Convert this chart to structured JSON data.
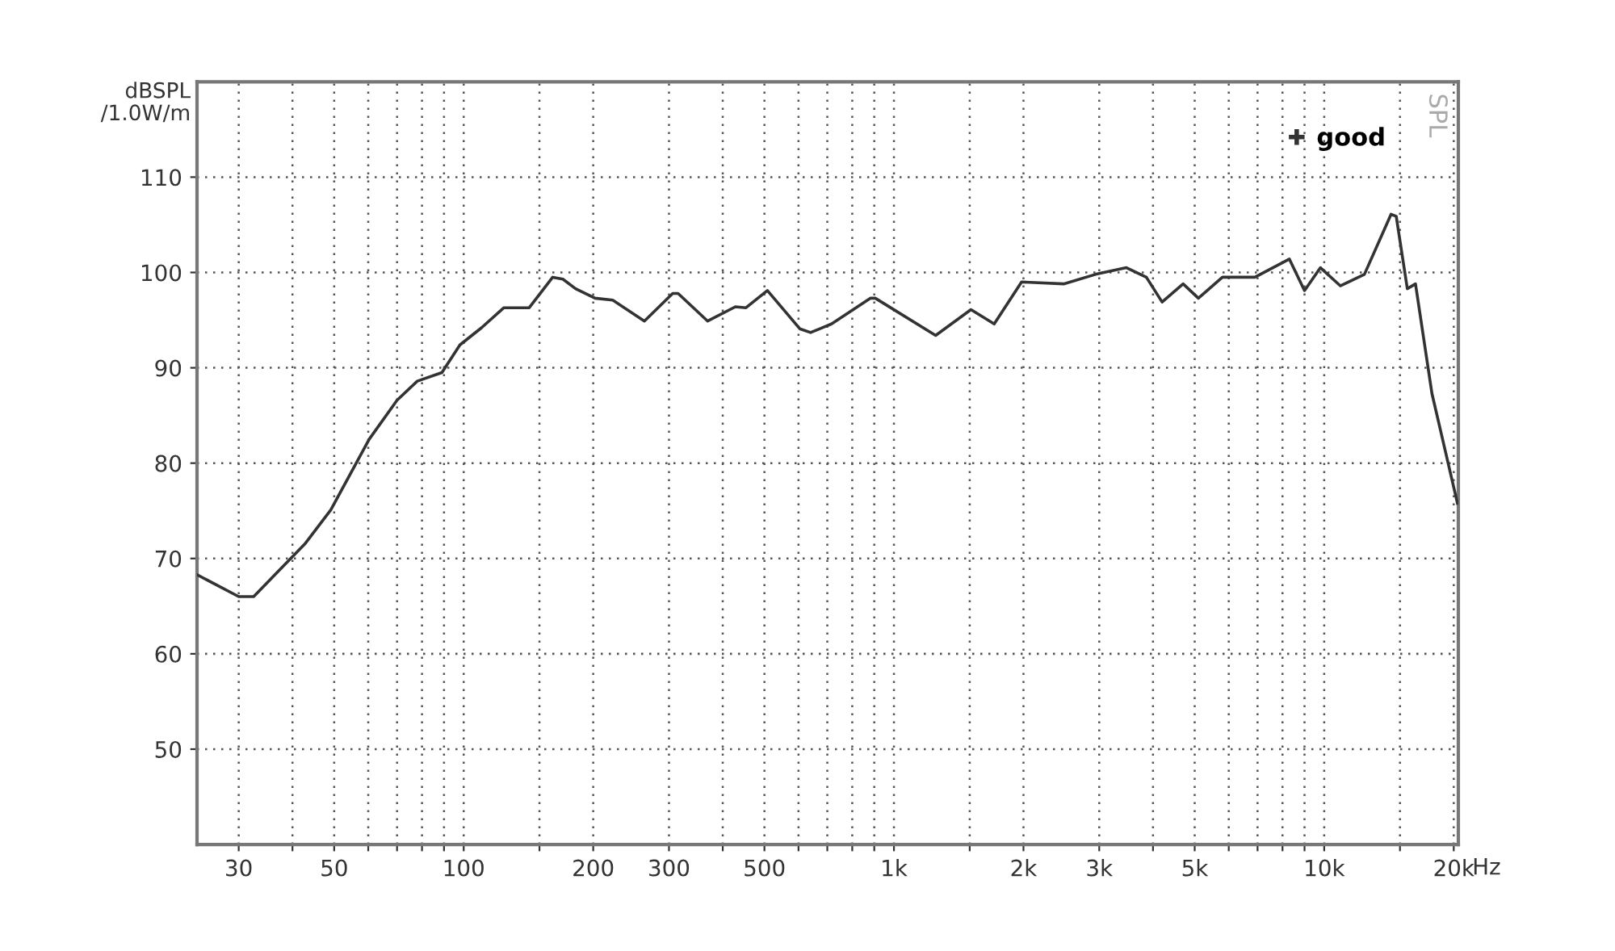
{
  "chart_data": {
    "type": "line",
    "ylabel": "dBSPL\n/1.0W/m",
    "x": [
      24,
      30,
      32.5,
      40,
      42.7,
      49.1,
      60.3,
      70,
      78,
      89,
      98,
      110,
      124,
      142,
      161,
      170,
      182,
      202,
      222,
      263,
      306,
      315,
      369,
      428,
      453,
      508,
      604,
      640,
      716,
      881,
      905,
      1250,
      1510,
      1710,
      1980,
      2480,
      2940,
      3470,
      3860,
      4200,
      4700,
      5100,
      5800,
      6900,
      8300,
      9000,
      9800,
      10900,
      12400,
      14300,
      14700,
      15600,
      16300,
      17800,
      20400
    ],
    "series": [
      {
        "name": "good",
        "color": "#333333",
        "values": [
          68.3,
          66.0,
          66.0,
          70.2,
          71.5,
          75.1,
          82.5,
          86.6,
          88.6,
          89.5,
          92.4,
          94.2,
          96.3,
          96.3,
          99.5,
          99.3,
          98.3,
          97.3,
          97.1,
          94.9,
          97.8,
          97.8,
          94.9,
          96.4,
          96.3,
          98.1,
          94.1,
          93.7,
          94.6,
          97.3,
          97.3,
          93.4,
          96.1,
          94.6,
          99.0,
          98.8,
          99.8,
          100.5,
          99.5,
          96.9,
          98.8,
          97.3,
          99.5,
          99.5,
          101.4,
          98.1,
          100.5,
          98.6,
          99.8,
          106.1,
          105.9,
          98.3,
          98.8,
          87.3,
          75.8
        ]
      }
    ],
    "log": "x",
    "xlim": [
      24,
      20500
    ],
    "xticks": [
      30,
      {
        "value": 40,
        "label": null
      },
      50,
      {
        "value": 60,
        "label": null
      },
      {
        "value": 70,
        "label": null
      },
      {
        "value": 80,
        "label": null
      },
      {
        "value": 90,
        "label": null
      },
      100,
      {
        "value": 150,
        "label": null
      },
      200,
      300,
      {
        "value": 400,
        "label": null
      },
      500,
      {
        "value": 600,
        "label": null
      },
      {
        "value": 700,
        "label": null
      },
      {
        "value": 800,
        "label": null
      },
      {
        "value": 900,
        "label": null
      },
      {
        "value": 1000,
        "label": "1k"
      },
      {
        "value": 1500,
        "label": null
      },
      {
        "value": 2000,
        "label": "2k"
      },
      {
        "value": 3000,
        "label": "3k"
      },
      {
        "value": 4000,
        "label": null
      },
      {
        "value": 5000,
        "label": "5k"
      },
      {
        "value": 6000,
        "label": null
      },
      {
        "value": 7000,
        "label": null
      },
      {
        "value": 8000,
        "label": null
      },
      {
        "value": 9000,
        "label": null
      },
      {
        "value": 10000,
        "label": "10k"
      },
      {
        "value": 15000,
        "label": null
      },
      {
        "value": 20000,
        "label": "20k"
      }
    ],
    "xlabel": "Hz",
    "ylim": [
      40,
      120
    ],
    "yticks": [
      50,
      60,
      70,
      80,
      90,
      100,
      110
    ],
    "grid": true,
    "legend": "top right",
    "marker": "none",
    "line_style": "solid",
    "annotations": [
      "SPL"
    ]
  }
}
